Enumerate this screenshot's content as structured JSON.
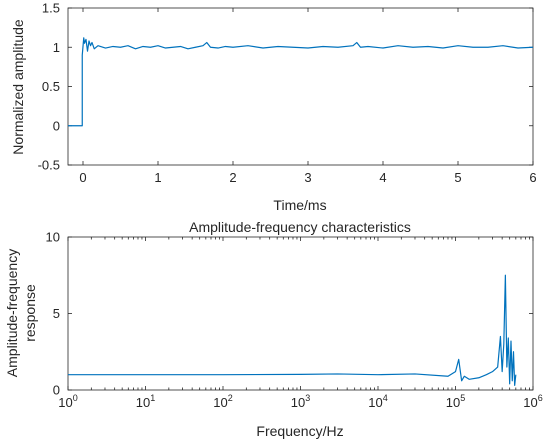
{
  "accent_color": "#0072bd",
  "chart_data": [
    {
      "type": "line",
      "title": "",
      "xlabel": "Time/ms",
      "ylabel": "Normalized amplitude",
      "xlim": [
        -0.2,
        6
      ],
      "ylim": [
        -0.5,
        1.5
      ],
      "xticks": [
        0,
        1,
        2,
        3,
        4,
        5,
        6
      ],
      "xtick_labels": [
        "0",
        "1",
        "2",
        "3",
        "4",
        "5",
        "6"
      ],
      "yticks": [
        -0.5,
        0,
        0.5,
        1,
        1.5
      ],
      "ytick_labels": [
        "-0.5",
        "0",
        "0.5",
        "1",
        "1.5"
      ],
      "grid": false,
      "series": [
        {
          "color": "#0072bd",
          "x": [
            -0.2,
            -0.01,
            -0.01,
            0.01,
            0.02,
            0.04,
            0.06,
            0.08,
            0.1,
            0.12,
            0.15,
            0.2,
            0.3,
            0.4,
            0.5,
            0.6,
            0.7,
            0.8,
            0.9,
            1.0,
            1.1,
            1.2,
            1.3,
            1.4,
            1.5,
            1.6,
            1.65,
            1.7,
            1.8,
            1.9,
            2.0,
            2.2,
            2.4,
            2.6,
            2.8,
            3.0,
            3.2,
            3.4,
            3.6,
            3.65,
            3.7,
            3.8,
            4.0,
            4.2,
            4.4,
            4.6,
            4.8,
            5.0,
            5.2,
            5.4,
            5.6,
            5.8,
            6.0
          ],
          "y": [
            0,
            0,
            0.9,
            1.12,
            1.05,
            1.1,
            0.95,
            1.08,
            1.02,
            1.06,
            0.98,
            1.02,
            0.99,
            1.01,
            1.0,
            1.02,
            0.98,
            1.01,
            1.0,
            1.02,
            0.99,
            1.0,
            1.01,
            0.98,
            1.0,
            1.02,
            1.06,
            1.0,
            0.99,
            1.01,
            1.0,
            1.02,
            0.99,
            1.01,
            1.0,
            0.99,
            1.01,
            1.0,
            1.02,
            1.06,
            1.0,
            1.01,
            0.99,
            1.02,
            1.0,
            1.01,
            0.99,
            1.02,
            1.0,
            1.0,
            1.02,
            0.99,
            1.0
          ]
        }
      ]
    },
    {
      "type": "line",
      "title": "Amplitude-frequency characteristics",
      "xlabel": "Frequency/Hz",
      "ylabel": [
        "Amplitude-frequency",
        "response"
      ],
      "xscale": "log",
      "xlim": [
        1,
        1000000
      ],
      "ylim": [
        0,
        10
      ],
      "xticks": [
        1,
        10,
        100,
        1000,
        10000,
        100000,
        1000000
      ],
      "xtick_base": "10",
      "xtick_exponents": [
        "0",
        "1",
        "2",
        "3",
        "4",
        "5",
        "6"
      ],
      "yticks": [
        0,
        5,
        10
      ],
      "ytick_labels": [
        "0",
        "5",
        "10"
      ],
      "grid": false,
      "series": [
        {
          "color": "#0072bd",
          "x": [
            1,
            10,
            100,
            1000,
            3000,
            10000,
            30000,
            80000,
            100000,
            110000,
            120000,
            130000,
            150000,
            200000,
            250000,
            300000,
            350000,
            380000,
            400000,
            420000,
            440000,
            460000,
            480000,
            500000,
            520000,
            540000,
            560000,
            580000,
            600000
          ],
          "y": [
            1.0,
            1.0,
            1.0,
            1.02,
            1.05,
            1.0,
            1.05,
            0.9,
            1.2,
            2.0,
            0.6,
            0.9,
            0.7,
            0.8,
            1.0,
            1.2,
            1.5,
            3.5,
            1.2,
            3.0,
            7.5,
            1.5,
            3.4,
            0.4,
            3.2,
            0.6,
            2.5,
            0.3,
            1.0
          ]
        }
      ]
    }
  ]
}
